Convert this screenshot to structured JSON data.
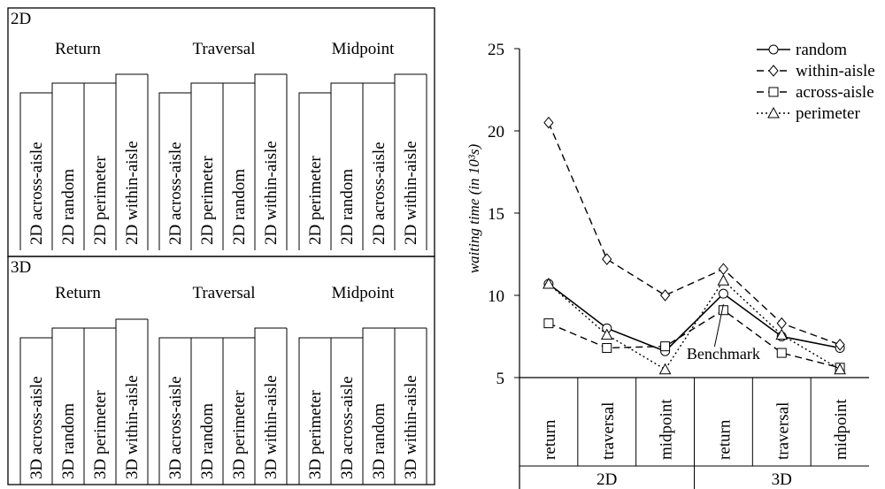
{
  "diagram": {
    "panels": [
      {
        "label": "2D",
        "groups": [
          {
            "title": "Return",
            "bars": [
              "2D across-aisle",
              "2D random",
              "2D perimeter",
              "2D within-aisle"
            ],
            "levels": [
              1,
              2,
              2,
              3
            ]
          },
          {
            "title": "Traversal",
            "bars": [
              "2D across-aisle",
              "2D perimeter",
              "2D random",
              "2D within-aisle"
            ],
            "levels": [
              1,
              2,
              2,
              3
            ]
          },
          {
            "title": "Midpoint",
            "bars": [
              "2D perimeter",
              "2D random",
              "2D across-aisle",
              "2D within-aisle"
            ],
            "levels": [
              1,
              2,
              2,
              3
            ]
          }
        ]
      },
      {
        "label": "3D",
        "groups": [
          {
            "title": "Return",
            "bars": [
              "3D across-aisle",
              "3D random",
              "3D perimeter",
              "3D within-aisle"
            ],
            "levels": [
              1,
              2,
              2,
              3
            ]
          },
          {
            "title": "Traversal",
            "bars": [
              "3D across-aisle",
              "3D random",
              "3D perimeter",
              "3D within-aisle"
            ],
            "levels": [
              1,
              1,
              1,
              2
            ]
          },
          {
            "title": "Midpoint",
            "bars": [
              "3D perimeter",
              "3D across-aisle",
              "3D random",
              "3D within-aisle"
            ],
            "levels": [
              1,
              1,
              2,
              2
            ]
          }
        ]
      }
    ]
  },
  "chart_data": {
    "type": "line",
    "ylabel": "waiting time (in 10³s)",
    "ylim": [
      5,
      25
    ],
    "yticks": [
      5,
      10,
      15,
      20,
      25
    ],
    "x": [
      "return",
      "traversal",
      "midpoint",
      "return",
      "traversal",
      "midpoint"
    ],
    "x_groups": [
      {
        "label": "2D",
        "span": [
          0,
          2
        ]
      },
      {
        "label": "3D",
        "span": [
          3,
          5
        ]
      }
    ],
    "series": [
      {
        "name": "random",
        "marker": "circle",
        "dash": "solid",
        "values": [
          10.7,
          8.0,
          6.6,
          10.1,
          7.5,
          6.8
        ]
      },
      {
        "name": "within-aisle",
        "marker": "diamond",
        "dash": "dashed",
        "values": [
          20.5,
          12.2,
          10.0,
          11.6,
          8.3,
          7.0
        ]
      },
      {
        "name": "across-aisle",
        "marker": "square",
        "dash": "dashed",
        "values": [
          8.3,
          6.8,
          6.9,
          9.1,
          6.5,
          5.6
        ]
      },
      {
        "name": "perimeter",
        "marker": "triangle",
        "dash": "dotted",
        "values": [
          10.7,
          7.6,
          5.5,
          10.9,
          7.6,
          5.5
        ]
      }
    ],
    "legend_position": "top-right",
    "annotation": {
      "text": "Benchmark",
      "target_index": 3
    },
    "grid": false
  }
}
